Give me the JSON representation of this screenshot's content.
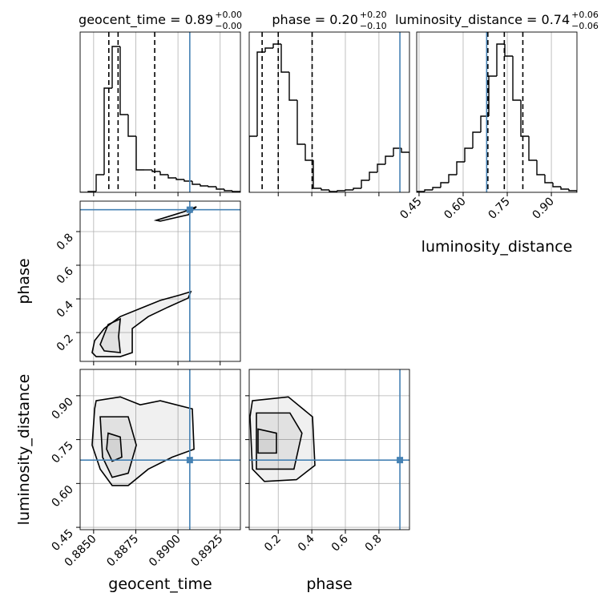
{
  "chart_data": [
    {
      "type": "histogram",
      "title": "geocent_time = 0.89",
      "title_sup": "+0.00",
      "title_sub": "−0.00",
      "bins": [
        0.8842,
        0.884675,
        0.88515,
        0.885625,
        0.8861,
        0.886575,
        0.88705,
        0.887525,
        0.888,
        0.888475,
        0.88895,
        0.889425,
        0.8899,
        0.890375,
        0.89085,
        0.891325,
        0.8918,
        0.892275,
        0.89275,
        0.893225,
        0.8937
      ],
      "values": [
        0,
        1,
        22,
        130,
        182,
        97,
        70,
        28,
        28,
        26,
        22,
        18,
        16,
        14,
        10,
        8,
        7,
        4,
        2,
        1
      ],
      "xlim": [
        0.8842,
        0.8937
      ],
      "ylim": [
        0,
        200
      ],
      "xticks": [
        {
          "value": 0.885,
          "label": "0.8850"
        },
        {
          "value": 0.8875,
          "label": "0.8875"
        },
        {
          "value": 0.89,
          "label": "0.8900"
        },
        {
          "value": 0.8925,
          "label": "0.8925"
        }
      ],
      "quantiles": [
        0.8859,
        0.88645,
        0.88862
      ],
      "truth": 0.8907,
      "truth_color": "#4682b4",
      "color": "#000000",
      "grid": true
    },
    {
      "type": "histogram",
      "title": "phase = 0.20",
      "title_sup": "+0.20",
      "title_sub": "−0.10",
      "bins": [
        0.027,
        0.07475,
        0.1225,
        0.17025,
        0.218,
        0.26575,
        0.3135,
        0.36125,
        0.409,
        0.45675,
        0.5045,
        0.55225,
        0.6,
        0.64775,
        0.6955,
        0.74325,
        0.791,
        0.83875,
        0.8865,
        0.93425,
        0.982
      ],
      "values": [
        70,
        175,
        180,
        185,
        150,
        115,
        60,
        40,
        5,
        3,
        1,
        2,
        3,
        5,
        15,
        25,
        35,
        45,
        55,
        50
      ],
      "xlim": [
        0.027,
        0.982
      ],
      "ylim": [
        0,
        200
      ],
      "xticks": [
        0.2,
        0.4,
        0.6,
        0.8
      ],
      "quantiles": [
        0.104,
        0.2,
        0.402
      ],
      "truth": 0.925,
      "truth_color": "#4682b4",
      "color": "#000000",
      "grid": true
    },
    {
      "type": "histogram",
      "title": "luminosity_distance = 0.74",
      "title_sup": "+0.06",
      "title_sub": "−0.06",
      "xlabel": "luminosity_distance",
      "bins": [
        0.442,
        0.46925,
        0.4965,
        0.52375,
        0.551,
        0.57825,
        0.6055,
        0.63275,
        0.66,
        0.68725,
        0.7145,
        0.74175,
        0.769,
        0.79625,
        0.8235,
        0.85075,
        0.878,
        0.90525,
        0.9325,
        0.95975,
        0.987
      ],
      "values": [
        1,
        3,
        6,
        12,
        22,
        38,
        55,
        75,
        95,
        145,
        185,
        170,
        115,
        70,
        40,
        22,
        12,
        7,
        4,
        2
      ],
      "xlim": [
        0.442,
        0.987
      ],
      "ylim": [
        0,
        200
      ],
      "xticks": [
        0.45,
        {
          "value": 0.6,
          "label": "0.60"
        },
        0.75,
        {
          "value": 0.9,
          "label": "0.90"
        }
      ],
      "quantiles": [
        0.684,
        0.74,
        0.803
      ],
      "truth": 0.68,
      "truth_color": "#4682b4",
      "color": "#000000",
      "grid": true
    },
    {
      "type": "contour",
      "ylabel": "phase",
      "xlim": [
        0.8842,
        0.8937
      ],
      "ylim": [
        0.0286,
        0.981
      ],
      "xticks": [
        {
          "value": 0.885,
          "label": "0.8850"
        },
        {
          "value": 0.8875,
          "label": "0.8875"
        },
        {
          "value": 0.89,
          "label": "0.8900"
        },
        {
          "value": 0.8925,
          "label": "0.8925"
        }
      ],
      "yticks": [
        0.2,
        0.4,
        0.6,
        0.8
      ],
      "contours": [
        {
          "x": [
            0.88491,
            0.88506,
            0.88563,
            0.88658,
            0.88776,
            0.88895,
            0.89014,
            0.89076,
            0.89061,
            0.88943,
            0.88824,
            0.88729,
            0.88729,
            0.88658,
            0.88515
          ],
          "y": [
            0.081,
            0.152,
            0.224,
            0.295,
            0.343,
            0.391,
            0.424,
            0.443,
            0.405,
            0.352,
            0.295,
            0.224,
            0.081,
            0.057,
            0.057
          ]
        },
        {
          "x": [
            0.88539,
            0.88586,
            0.88658,
            0.88648,
            0.88658,
            0.88563
          ],
          "y": [
            0.129,
            0.248,
            0.281,
            0.176,
            0.081,
            0.091
          ]
        },
        {
          "x": [
            0.88871,
            0.89038,
            0.89109,
            0.89061,
            0.88895
          ],
          "y": [
            0.867,
            0.919,
            0.948,
            0.9,
            0.862
          ]
        }
      ],
      "truth": [
        0.8907,
        0.93
      ],
      "truth_color": "#4682b4",
      "color": "#000000",
      "grid": true
    },
    {
      "type": "contour",
      "xlabel": "geocent_time",
      "ylabel": "luminosity_distance",
      "xlim": [
        0.8842,
        0.8937
      ],
      "ylim": [
        0.442,
        0.99
      ],
      "xticks": [
        {
          "value": 0.885,
          "label": "0.8850"
        },
        {
          "value": 0.8875,
          "label": "0.8875"
        },
        {
          "value": 0.89,
          "label": "0.8900"
        },
        {
          "value": 0.8925,
          "label": "0.8925"
        }
      ],
      "yticks": [
        0.45,
        {
          "value": 0.6,
          "label": "0.60"
        },
        0.75,
        {
          "value": 0.9,
          "label": "0.90"
        }
      ],
      "contours": [
        {
          "x": [
            0.88515,
            0.88658,
            0.88776,
            0.88895,
            0.89085,
            0.89095,
            0.88966,
            0.88824,
            0.88705,
            0.8861,
            0.88539,
            0.88491,
            0.88506
          ],
          "y": [
            0.883,
            0.896,
            0.869,
            0.883,
            0.855,
            0.717,
            0.69,
            0.649,
            0.593,
            0.593,
            0.649,
            0.731,
            0.855
          ]
        },
        {
          "x": [
            0.88539,
            0.88705,
            0.88753,
            0.88705,
            0.8861,
            0.88553
          ],
          "y": [
            0.828,
            0.828,
            0.731,
            0.635,
            0.621,
            0.69
          ]
        },
        {
          "x": [
            0.88586,
            0.88658,
            0.88667,
            0.8861,
            0.88577
          ],
          "y": [
            0.772,
            0.759,
            0.69,
            0.676,
            0.717
          ]
        }
      ],
      "truth": [
        0.8907,
        0.68
      ],
      "truth_color": "#4682b4",
      "color": "#000000",
      "grid": true
    },
    {
      "type": "contour",
      "xlabel": "phase",
      "xlim": [
        0.027,
        0.982
      ],
      "ylim": [
        0.442,
        0.99
      ],
      "xticks": [
        0.2,
        0.4,
        0.6,
        0.8
      ],
      "yticks": [
        0.45,
        {
          "value": 0.6,
          "label": "0.60"
        },
        0.75,
        {
          "value": 0.9,
          "label": "0.90"
        }
      ],
      "contours": [
        {
          "x": [
            0.0461,
            0.26,
            0.4042,
            0.4185,
            0.3087,
            0.1177,
            0.0461,
            0.0318
          ],
          "y": [
            0.883,
            0.896,
            0.828,
            0.662,
            0.613,
            0.607,
            0.649,
            0.828
          ]
        },
        {
          "x": [
            0.07,
            0.2697,
            0.3413,
            0.2936,
            0.07
          ],
          "y": [
            0.841,
            0.841,
            0.772,
            0.649,
            0.649
          ]
        },
        {
          "x": [
            0.0795,
            0.1893,
            0.1893,
            0.0795
          ],
          "y": [
            0.786,
            0.772,
            0.704,
            0.704
          ]
        }
      ],
      "truth": [
        0.925,
        0.68
      ],
      "truth_color": "#4682b4",
      "color": "#000000",
      "grid": true
    }
  ]
}
